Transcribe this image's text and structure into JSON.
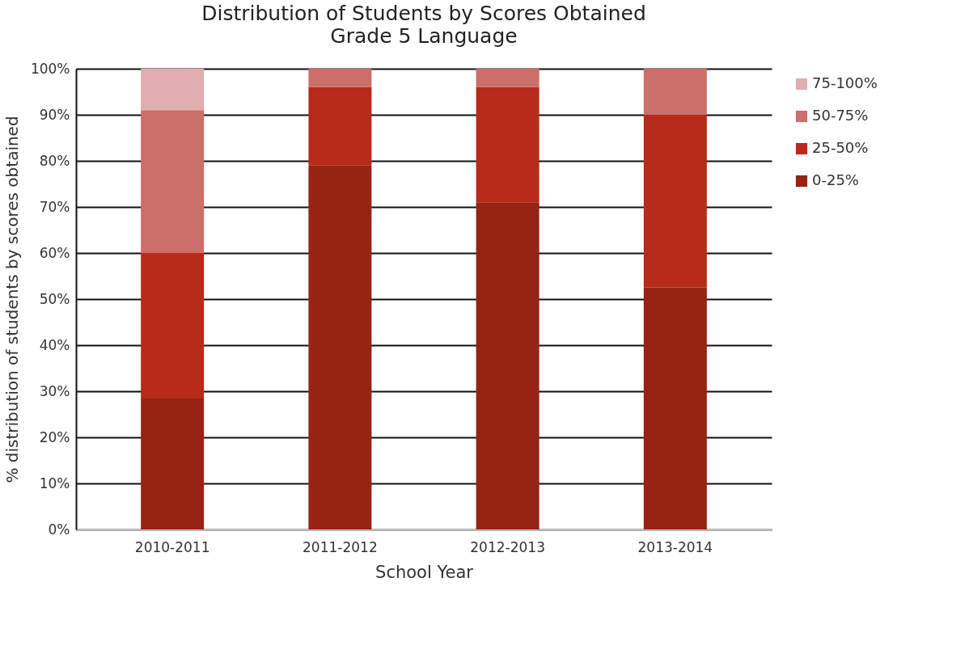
{
  "chart_data": {
    "type": "bar",
    "title": "Distribution of Students by Scores Obtained",
    "subtitle": "Grade 5 Language",
    "xlabel": "School Year",
    "ylabel": "% distribution of students by scores obtained",
    "categories": [
      "2010-2011",
      "2011-2012",
      "2012-2013",
      "2013-2014"
    ],
    "stacked": true,
    "series": [
      {
        "name": "0-25%",
        "color": "#962314",
        "values": [
          28.4,
          79,
          71,
          52.5
        ]
      },
      {
        "name": "25-50%",
        "color": "#b82a1a",
        "values": [
          31.6,
          17,
          25,
          37.5
        ]
      },
      {
        "name": "50-75%",
        "color": "#cc6e69",
        "values": [
          31,
          4,
          4,
          10
        ]
      },
      {
        "name": "75-100%",
        "color": "#e0aeae",
        "values": [
          9,
          0,
          0,
          0
        ]
      }
    ],
    "ylim": [
      0,
      100
    ],
    "yticks": [
      {
        "value": 0,
        "label": "0%"
      },
      {
        "value": 10,
        "label": "10%"
      },
      {
        "value": 20,
        "label": "20%"
      },
      {
        "value": 30,
        "label": "30%"
      },
      {
        "value": 40,
        "label": "40%"
      },
      {
        "value": 50,
        "label": "50%"
      },
      {
        "value": 60,
        "label": "60%"
      },
      {
        "value": 70,
        "label": "70%"
      },
      {
        "value": 80,
        "label": "80%"
      },
      {
        "value": 90,
        "label": "90%"
      },
      {
        "value": 100,
        "label": "100%"
      }
    ],
    "grid": "y",
    "legend": "right"
  }
}
